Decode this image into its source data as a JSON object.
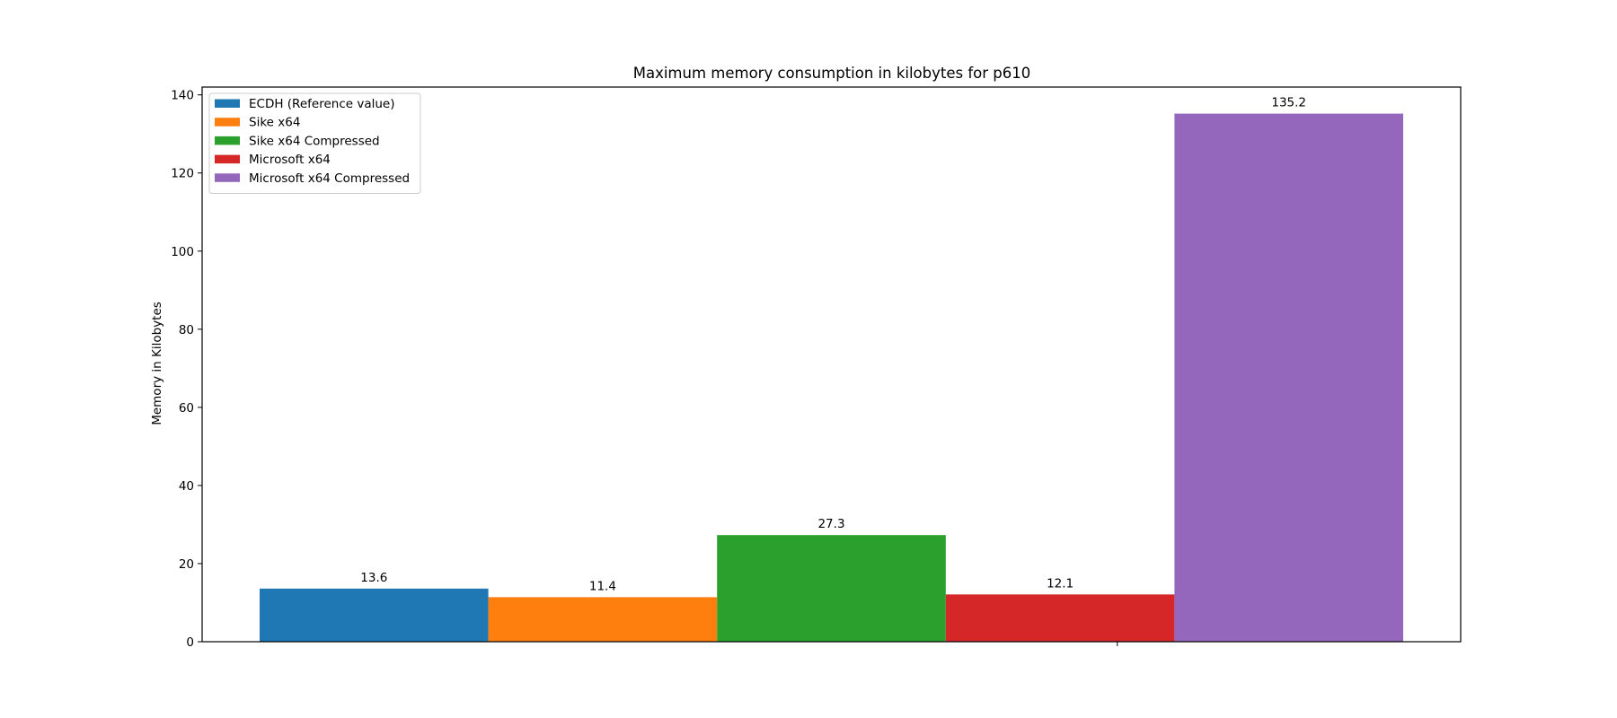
{
  "chart_data": {
    "type": "bar",
    "title": "Maximum memory consumption in kilobytes for p610",
    "xlabel": "",
    "ylabel": "Memory in Kilobytes",
    "ylim": [
      0,
      142
    ],
    "yticks": [
      0,
      20,
      40,
      60,
      80,
      100,
      120,
      140
    ],
    "grid": false,
    "legend": "upper-left",
    "series": [
      {
        "name": "ECDH (Reference value)",
        "value": 13.6,
        "label": "13.6",
        "color": "#1f77b4"
      },
      {
        "name": "Sike x64",
        "value": 11.4,
        "label": "11.4",
        "color": "#ff7f0e"
      },
      {
        "name": "Sike x64 Compressed",
        "value": 27.3,
        "label": "27.3",
        "color": "#2ca02c"
      },
      {
        "name": "Microsoft x64",
        "value": 12.1,
        "label": "12.1",
        "color": "#d62728"
      },
      {
        "name": "Microsoft x64 Compressed",
        "value": 135.2,
        "label": "135.2",
        "color": "#9467bd"
      }
    ]
  }
}
